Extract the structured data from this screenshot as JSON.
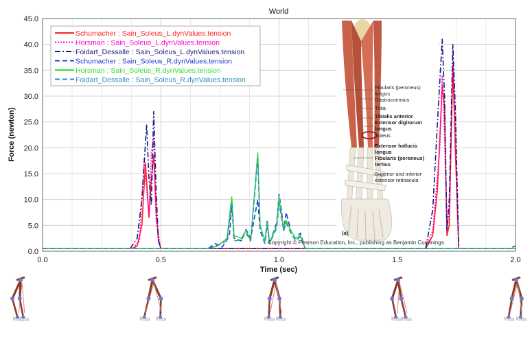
{
  "chart_data": {
    "type": "line",
    "title": "World",
    "xlabel": "Time (sec)",
    "ylabel": "Force (newton)",
    "xlim": [
      0.0,
      2.0
    ],
    "ylim": [
      0.0,
      45.0
    ],
    "x_ticks": [
      "0.0",
      "0.5",
      "1.0",
      "1.5",
      "2.0"
    ],
    "y_ticks": [
      "0.0",
      "5.0",
      "10.0",
      "15.0",
      "20.0",
      "25.0",
      "30.0",
      "35.0",
      "40.0",
      "45.0"
    ],
    "grid": true,
    "legend_position": "top-left",
    "series": [
      {
        "name": "Schumacher : Sain_Soleus_L.dynValues.tension",
        "color": "#ff2020",
        "dash": "solid",
        "points": [
          [
            0.0,
            0.5
          ],
          [
            0.38,
            0.5
          ],
          [
            0.4,
            1.0
          ],
          [
            0.42,
            5.0
          ],
          [
            0.435,
            17.0
          ],
          [
            0.445,
            10.0
          ],
          [
            0.45,
            6.5
          ],
          [
            0.46,
            14.0
          ],
          [
            0.47,
            18.5
          ],
          [
            0.48,
            8.0
          ],
          [
            0.49,
            2.0
          ],
          [
            0.5,
            0.5
          ],
          [
            1.5,
            0.5
          ],
          [
            1.62,
            0.5
          ],
          [
            1.65,
            3.0
          ],
          [
            1.67,
            12.0
          ],
          [
            1.69,
            32.0
          ],
          [
            1.7,
            28.0
          ],
          [
            1.71,
            3.0
          ],
          [
            1.72,
            5.0
          ],
          [
            1.735,
            36.0
          ],
          [
            1.745,
            20.0
          ],
          [
            1.76,
            0.5
          ],
          [
            2.0,
            0.5
          ]
        ]
      },
      {
        "name": "Horsman : Sain_Soleus_L.dynValues.tension",
        "color": "#ff00cc",
        "dash": "dot",
        "points": [
          [
            0.0,
            0.5
          ],
          [
            0.38,
            0.5
          ],
          [
            0.41,
            2.0
          ],
          [
            0.43,
            18.0
          ],
          [
            0.44,
            12.0
          ],
          [
            0.45,
            7.0
          ],
          [
            0.46,
            19.0
          ],
          [
            0.47,
            22.0
          ],
          [
            0.48,
            6.0
          ],
          [
            0.5,
            0.5
          ],
          [
            1.62,
            0.5
          ],
          [
            1.65,
            4.0
          ],
          [
            1.68,
            20.0
          ],
          [
            1.69,
            34.0
          ],
          [
            1.7,
            22.0
          ],
          [
            1.71,
            4.0
          ],
          [
            1.72,
            8.0
          ],
          [
            1.735,
            38.0
          ],
          [
            1.745,
            25.0
          ],
          [
            1.76,
            0.5
          ],
          [
            2.0,
            0.5
          ]
        ]
      },
      {
        "name": "Foidart_Dessalle : Sain_Soleus_L.dynValues.tension",
        "color": "#1a1a80",
        "dash": "dashdot",
        "points": [
          [
            0.0,
            0.5
          ],
          [
            0.37,
            0.5
          ],
          [
            0.4,
            2.5
          ],
          [
            0.42,
            10.0
          ],
          [
            0.44,
            24.5
          ],
          [
            0.45,
            14.0
          ],
          [
            0.46,
            9.0
          ],
          [
            0.47,
            27.0
          ],
          [
            0.48,
            12.0
          ],
          [
            0.49,
            2.0
          ],
          [
            0.5,
            0.5
          ],
          [
            1.62,
            0.5
          ],
          [
            1.65,
            8.0
          ],
          [
            1.67,
            25.0
          ],
          [
            1.69,
            41.0
          ],
          [
            1.7,
            30.0
          ],
          [
            1.71,
            4.0
          ],
          [
            1.72,
            10.0
          ],
          [
            1.735,
            40.0
          ],
          [
            1.745,
            28.0
          ],
          [
            1.76,
            0.5
          ],
          [
            2.0,
            0.5
          ]
        ]
      },
      {
        "name": "Schumacher : Sain_Soleus_R.dynValues.tension",
        "color": "#1e3cd8",
        "dash": "dash",
        "points": [
          [
            0.0,
            0.5
          ],
          [
            0.7,
            0.5
          ],
          [
            0.73,
            1.5
          ],
          [
            0.76,
            0.8
          ],
          [
            0.79,
            3.0
          ],
          [
            0.8,
            9.0
          ],
          [
            0.81,
            2.5
          ],
          [
            0.84,
            2.0
          ],
          [
            0.86,
            4.2
          ],
          [
            0.88,
            2.5
          ],
          [
            0.91,
            10.0
          ],
          [
            0.92,
            4.0
          ],
          [
            0.94,
            1.5
          ],
          [
            0.95,
            6.0
          ],
          [
            0.96,
            1.5
          ],
          [
            0.99,
            5.5
          ],
          [
            1.0,
            11.0
          ],
          [
            1.01,
            8.0
          ],
          [
            1.02,
            4.0
          ],
          [
            1.03,
            7.5
          ],
          [
            1.05,
            4.0
          ],
          [
            1.07,
            2.5
          ],
          [
            1.09,
            3.5
          ],
          [
            1.11,
            0.5
          ],
          [
            1.97,
            0.5
          ],
          [
            2.0,
            1.0
          ]
        ]
      },
      {
        "name": "Horsman : Sain_Soleus_R.dynValues.tension",
        "color": "#33dd33",
        "dash": "solid",
        "points": [
          [
            0.0,
            0.5
          ],
          [
            0.7,
            0.5
          ],
          [
            0.74,
            1.0
          ],
          [
            0.78,
            2.5
          ],
          [
            0.8,
            10.5
          ],
          [
            0.81,
            3.0
          ],
          [
            0.84,
            2.5
          ],
          [
            0.86,
            4.0
          ],
          [
            0.88,
            2.0
          ],
          [
            0.91,
            19.0
          ],
          [
            0.92,
            5.0
          ],
          [
            0.94,
            2.0
          ],
          [
            0.95,
            5.5
          ],
          [
            0.96,
            1.5
          ],
          [
            0.99,
            5.0
          ],
          [
            1.0,
            10.5
          ],
          [
            1.01,
            7.0
          ],
          [
            1.02,
            4.5
          ],
          [
            1.03,
            6.0
          ],
          [
            1.05,
            4.0
          ],
          [
            1.07,
            2.5
          ],
          [
            1.09,
            3.0
          ],
          [
            1.11,
            0.5
          ],
          [
            2.0,
            0.5
          ]
        ]
      },
      {
        "name": "Foidart_Dessalle : Sain_Soleus_R.dynValues.tension",
        "color": "#2c8ec4",
        "dash": "dash",
        "points": [
          [
            0.0,
            0.5
          ],
          [
            0.7,
            0.5
          ],
          [
            0.74,
            1.2
          ],
          [
            0.78,
            2.0
          ],
          [
            0.8,
            9.5
          ],
          [
            0.81,
            2.0
          ],
          [
            0.84,
            2.2
          ],
          [
            0.86,
            3.5
          ],
          [
            0.88,
            2.0
          ],
          [
            0.91,
            18.0
          ],
          [
            0.92,
            4.5
          ],
          [
            0.94,
            1.5
          ],
          [
            0.95,
            5.0
          ],
          [
            0.96,
            1.5
          ],
          [
            0.99,
            4.5
          ],
          [
            1.0,
            9.5
          ],
          [
            1.01,
            6.5
          ],
          [
            1.02,
            4.0
          ],
          [
            1.03,
            5.5
          ],
          [
            1.05,
            3.5
          ],
          [
            1.07,
            2.0
          ],
          [
            1.09,
            2.8
          ],
          [
            1.11,
            0.5
          ],
          [
            2.0,
            0.5
          ]
        ]
      }
    ]
  },
  "inset": {
    "labels": [
      {
        "text": "Fibularis (peroneus)",
        "bold": false
      },
      {
        "text": "longus",
        "bold": false
      },
      {
        "text": "Gastrocnemius",
        "bold": false
      },
      {
        "text": "Tibia",
        "bold": false
      },
      {
        "text": "Tibialis anterior",
        "bold": true
      },
      {
        "text": "Extensor digitorum",
        "bold": true
      },
      {
        "text": "longus",
        "bold": true
      },
      {
        "text": "Soleus",
        "bold": false
      },
      {
        "text": "Extensor hallucis",
        "bold": true
      },
      {
        "text": "longus",
        "bold": true
      },
      {
        "text": "Fibularis (peroneus)",
        "bold": true
      },
      {
        "text": "tertius",
        "bold": true
      },
      {
        "text": "Superior and inferior",
        "bold": false
      },
      {
        "text": "extensor retinacula",
        "bold": false
      }
    ],
    "panel_letter": "(a)",
    "copyright": "Copyright © Pearson Education, Inc., publishing as Benjamin Cummings."
  },
  "colors": {
    "grid": "#c8c8c8",
    "muscle": "#c9624a",
    "tendon": "#e8e0d0",
    "highlight": "#9b1b30"
  }
}
